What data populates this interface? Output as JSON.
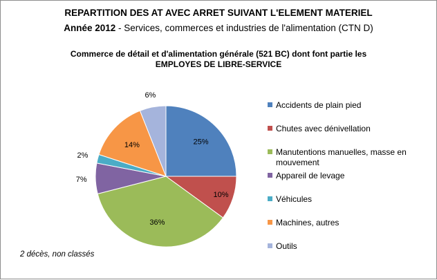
{
  "header": {
    "title_line1": "REPARTITION DES AT AVEC ARRET SUIVANT L'ELEMENT MATERIEL",
    "year": "Année 2012",
    "title_line2_rest": " - Services, commerces et industries de l'alimentation (CTN D)",
    "subtitle": "Commerce de détail et d'alimentation générale (521 BC) dont font partie les EMPLOYES DE LIBRE-SERVICE"
  },
  "note": "2 décès, non classés",
  "chart_data": {
    "type": "pie",
    "categories": [
      "Accidents de plain pied",
      "Chutes avec dénivellation",
      "Manutentions manuelles, masse en mouvement",
      "Appareil de levage",
      "Véhicules",
      "Machines, autres",
      "Outils"
    ],
    "values": [
      25,
      10,
      36,
      7,
      2,
      14,
      6
    ],
    "data_labels": [
      "25%",
      "10%",
      "36%",
      "7%",
      "2%",
      "14%",
      "6%"
    ],
    "colors": [
      "#4f81bd",
      "#c0504d",
      "#9bbb59",
      "#8064a2",
      "#4bacc6",
      "#f79646",
      "#a5b4dc"
    ],
    "legend_position": "right"
  }
}
